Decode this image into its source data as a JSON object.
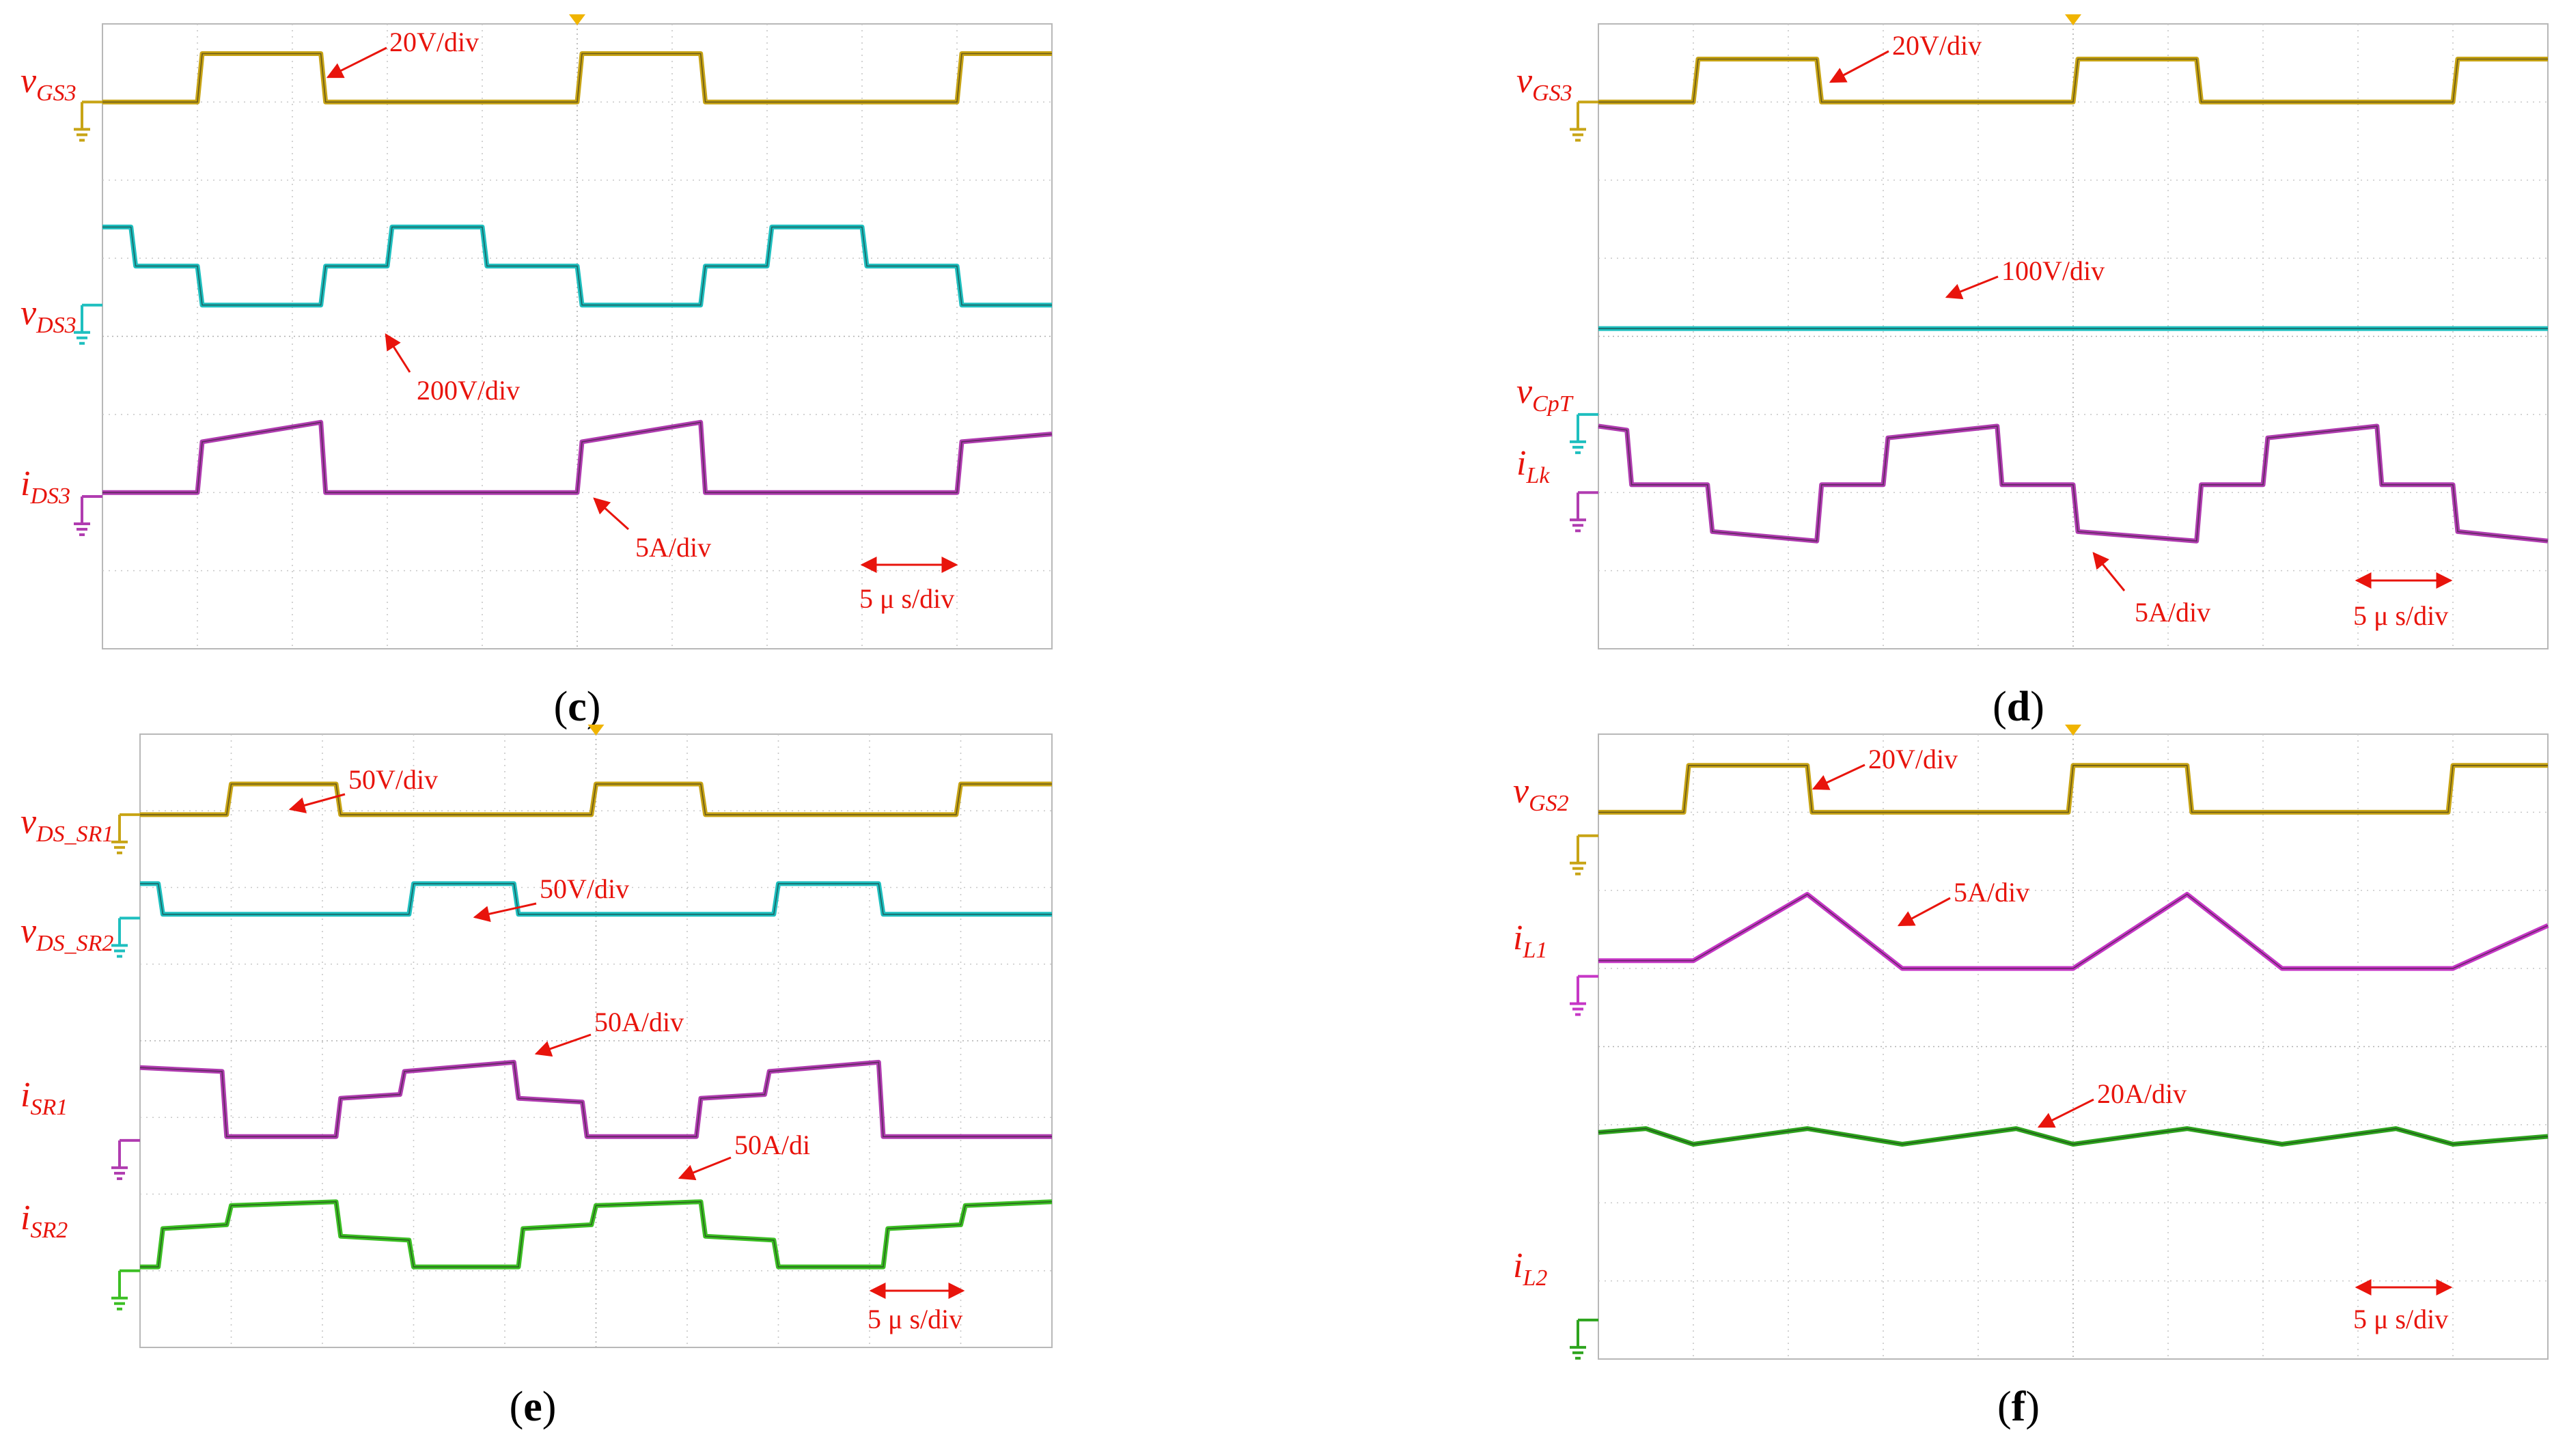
{
  "chart_data": [
    {
      "id": "c",
      "type": "line",
      "caption": "c",
      "grid": true,
      "x_divisions": 10,
      "y_divisions": 8,
      "time_scale": "5 μ s/div",
      "x_range_div": [
        0,
        10
      ],
      "y_range_div": [
        0,
        8
      ],
      "series": [
        {
          "name": "vGS3",
          "base": "v",
          "sub": "GS3",
          "color": "#c8a415",
          "ground_level": 7.0,
          "scale": "20V/div",
          "x": [
            0,
            0.3,
            0.35,
            1.0,
            1.05,
            2.3,
            2.35,
            4.0,
            4.05,
            5.0,
            5.05,
            6.3,
            6.35,
            8.0,
            8.05,
            9.0,
            9.05,
            10.0
          ],
          "y": [
            7.0,
            7.0,
            7.0,
            7.0,
            7.62,
            7.62,
            7.0,
            7.0,
            7.0,
            7.0,
            7.62,
            7.62,
            7.0,
            7.0,
            7.0,
            7.0,
            7.62,
            7.62
          ]
        },
        {
          "name": "vDS3",
          "base": "v",
          "sub": "DS3",
          "color": "#1ebfbf",
          "ground_level": 4.4,
          "scale": "200V/div",
          "x": [
            0,
            0.3,
            0.35,
            1.0,
            1.05,
            2.3,
            2.35,
            3.0,
            3.05,
            4.0,
            4.05,
            5.0,
            5.05,
            6.3,
            6.35,
            7.0,
            7.05,
            8.0,
            8.05,
            9.0,
            9.05,
            10.0
          ],
          "y": [
            5.4,
            5.4,
            4.9,
            4.9,
            4.4,
            4.4,
            4.9,
            4.9,
            5.4,
            5.4,
            4.9,
            4.9,
            4.4,
            4.4,
            4.9,
            4.9,
            5.4,
            5.4,
            4.9,
            4.9,
            4.4,
            4.4
          ]
        },
        {
          "name": "iDS3",
          "base": "i",
          "sub": "DS3",
          "color": "#b03cb0",
          "ground_level": 1.95,
          "scale": "5A/div",
          "x": [
            0,
            1.0,
            1.05,
            2.3,
            2.35,
            5.0,
            5.05,
            6.3,
            6.35,
            9.0,
            9.05,
            10.0
          ],
          "y": [
            2.0,
            2.0,
            2.65,
            2.9,
            2.0,
            2.0,
            2.65,
            2.9,
            2.0,
            2.0,
            2.65,
            2.75
          ]
        }
      ],
      "annotations": [
        "20V/div",
        "200V/div",
        "5A/div",
        "5 μ s/div"
      ]
    },
    {
      "id": "d",
      "type": "line",
      "caption": "d",
      "grid": true,
      "x_divisions": 10,
      "y_divisions": 8,
      "time_scale": "5 μ s/div",
      "x_range_div": [
        0,
        10
      ],
      "y_range_div": [
        0,
        8
      ],
      "series": [
        {
          "name": "vGS3",
          "base": "v",
          "sub": "GS3",
          "color": "#c8a415",
          "ground_level": 7.0,
          "scale": "20V/div",
          "x": [
            0,
            1.0,
            1.05,
            2.3,
            2.35,
            5.0,
            5.05,
            6.3,
            6.35,
            9.0,
            9.05,
            10.0
          ],
          "y": [
            7.0,
            7.0,
            7.55,
            7.55,
            7.0,
            7.0,
            7.55,
            7.55,
            7.0,
            7.0,
            7.55,
            7.55
          ]
        },
        {
          "name": "vCpT",
          "base": "v",
          "sub": "CpT",
          "color": "#1ebfbf",
          "ground_level": 3.0,
          "scale": "100V/div",
          "x": [
            0,
            10.0
          ],
          "y": [
            4.1,
            4.1
          ]
        },
        {
          "name": "iLk",
          "base": "i",
          "sub": "Lk",
          "color": "#b03cb0",
          "ground_level": 2.0,
          "scale": "5A/div",
          "x": [
            0,
            0.3,
            0.35,
            1.15,
            1.2,
            2.3,
            2.35,
            3.0,
            3.05,
            4.2,
            4.25,
            5.0,
            5.05,
            6.3,
            6.35,
            7.0,
            7.05,
            8.2,
            8.25,
            9.0,
            9.05,
            10.0
          ],
          "y": [
            2.85,
            2.8,
            2.1,
            2.1,
            1.5,
            1.38,
            2.1,
            2.1,
            2.7,
            2.85,
            2.1,
            2.1,
            1.5,
            1.38,
            2.1,
            2.1,
            2.7,
            2.85,
            2.1,
            2.1,
            1.5,
            1.38
          ]
        }
      ],
      "annotations": [
        "20V/div",
        "100V/div",
        "5A/div",
        "5 μ s/div"
      ]
    },
    {
      "id": "e",
      "type": "line",
      "caption": "e",
      "grid": true,
      "x_divisions": 10,
      "y_divisions": 8,
      "time_scale": "5 μ s/div",
      "x_range_div": [
        0,
        10
      ],
      "y_range_div": [
        0,
        8
      ],
      "series": [
        {
          "name": "vDS_SR1",
          "base": "v",
          "sub": "DS_SR1",
          "color": "#c8a415",
          "ground_level": 6.95,
          "scale": "50V/div",
          "x": [
            0,
            0.95,
            1.0,
            2.15,
            2.2,
            4.95,
            5.0,
            6.15,
            6.2,
            8.95,
            9.0,
            10.0
          ],
          "y": [
            6.95,
            6.95,
            7.35,
            7.35,
            6.95,
            6.95,
            7.35,
            7.35,
            6.95,
            6.95,
            7.35,
            7.35
          ]
        },
        {
          "name": "vDS_SR2",
          "base": "v",
          "sub": "DS_SR2",
          "color": "#1ebfbf",
          "ground_level": 5.6,
          "scale": "50V/div",
          "x": [
            0,
            0.2,
            0.25,
            2.95,
            3.0,
            4.1,
            4.15,
            6.95,
            7.0,
            8.1,
            8.15,
            10.0
          ],
          "y": [
            6.05,
            6.05,
            5.65,
            5.65,
            6.05,
            6.05,
            5.65,
            5.65,
            6.05,
            6.05,
            5.65,
            5.65
          ]
        },
        {
          "name": "iSR1",
          "base": "i",
          "sub": "SR1",
          "color": "#b03cb0",
          "ground_level": 2.7,
          "scale": "50A/div",
          "x": [
            0,
            0.9,
            0.95,
            2.15,
            2.2,
            2.85,
            2.9,
            4.1,
            4.15,
            4.85,
            4.9,
            6.1,
            6.15,
            6.85,
            6.9,
            8.1,
            8.15,
            10.0
          ],
          "y": [
            3.65,
            3.6,
            2.75,
            2.75,
            3.25,
            3.3,
            3.6,
            3.72,
            3.25,
            3.2,
            2.75,
            2.75,
            3.25,
            3.3,
            3.6,
            3.72,
            2.75,
            2.75
          ]
        },
        {
          "name": "iSR2",
          "base": "i",
          "sub": "SR2",
          "color": "#3cbf24",
          "ground_level": 1.0,
          "scale": "50A/di",
          "x": [
            0,
            0.2,
            0.25,
            0.95,
            1.0,
            2.15,
            2.2,
            2.95,
            3.0,
            4.15,
            4.2,
            4.95,
            5.0,
            6.15,
            6.2,
            6.95,
            7.0,
            8.15,
            8.2,
            9.0,
            9.05,
            10.0
          ],
          "y": [
            1.05,
            1.05,
            1.55,
            1.6,
            1.85,
            1.9,
            1.45,
            1.4,
            1.05,
            1.05,
            1.55,
            1.6,
            1.85,
            1.9,
            1.45,
            1.4,
            1.05,
            1.05,
            1.55,
            1.6,
            1.85,
            1.9
          ]
        }
      ],
      "annotations": [
        "50V/div",
        "50V/div",
        "50A/div",
        "50A/di",
        "5 μ s/div"
      ]
    },
    {
      "id": "f",
      "type": "line",
      "caption": "f",
      "grid": true,
      "x_divisions": 10,
      "y_divisions": 8,
      "time_scale": "5 μ s/div",
      "x_range_div": [
        0,
        10
      ],
      "y_range_div": [
        0,
        8
      ],
      "series": [
        {
          "name": "vGS2",
          "base": "v",
          "sub": "GS2",
          "color": "#c8a415",
          "ground_level": 6.7,
          "scale": "20V/div",
          "x": [
            0,
            0.9,
            0.95,
            2.2,
            2.25,
            4.95,
            5.0,
            6.2,
            6.25,
            8.95,
            9.0,
            10.0
          ],
          "y": [
            7.0,
            7.0,
            7.6,
            7.6,
            7.0,
            7.0,
            7.6,
            7.6,
            7.0,
            7.0,
            7.6,
            7.6
          ]
        },
        {
          "name": "iL1",
          "base": "i",
          "sub": "L1",
          "color": "#c637c6",
          "ground_level": 4.9,
          "scale": "5A/div",
          "x": [
            0,
            1.0,
            2.2,
            3.2,
            5.0,
            6.2,
            7.2,
            9.0,
            10.0
          ],
          "y": [
            5.1,
            5.1,
            5.95,
            5.0,
            5.0,
            5.95,
            5.0,
            5.0,
            5.55
          ]
        },
        {
          "name": "iL2",
          "base": "i",
          "sub": "L2",
          "color": "#2ea41e",
          "ground_level": 0.5,
          "scale": "20A/div",
          "x": [
            0,
            0.5,
            1.0,
            2.2,
            3.2,
            4.4,
            5.0,
            6.2,
            7.2,
            8.4,
            9.0,
            10.0
          ],
          "y": [
            2.9,
            2.95,
            2.75,
            2.95,
            2.75,
            2.95,
            2.75,
            2.95,
            2.75,
            2.95,
            2.75,
            2.85
          ]
        }
      ],
      "annotations": [
        "20V/div",
        "5A/div",
        "20A/div",
        "5 μ s/div"
      ]
    }
  ]
}
